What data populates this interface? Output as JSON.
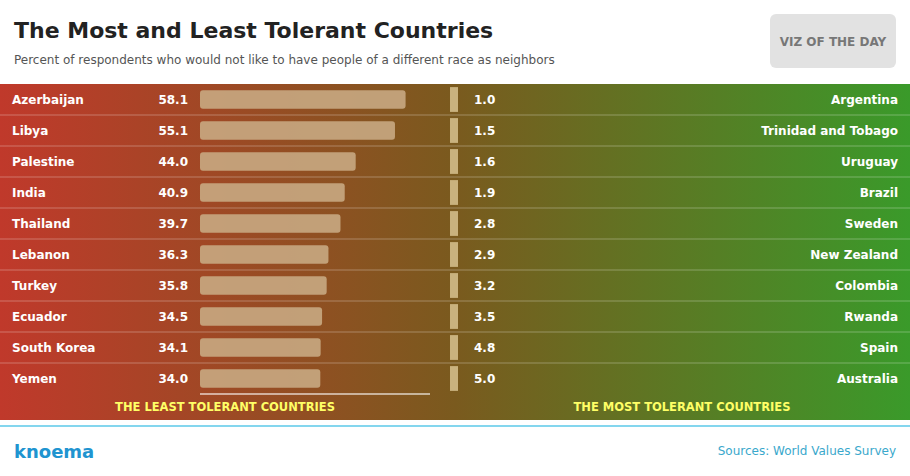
{
  "chart_data": [
    {
      "type": "bar",
      "orientation": "horizontal",
      "title": "The Most and Least Tolerant Countries",
      "subtitle": "Percent of respondents who would not like to have people of a different race as neighbors",
      "x_label": "THE LEAST TOLERANT COUNTRIES",
      "categories": [
        "Azerbaijan",
        "Libya",
        "Palestine",
        "India",
        "Thailand",
        "Lebanon",
        "Turkey",
        "Ecuador",
        "South Korea",
        "Yemen"
      ],
      "values": [
        58.1,
        55.1,
        44.0,
        40.9,
        39.7,
        36.3,
        35.8,
        34.5,
        34.1,
        34.0
      ],
      "value_labels": [
        "58.1",
        "55.1",
        "44.0",
        "40.9",
        "39.7",
        "36.3",
        "35.8",
        "34.5",
        "34.1",
        "34.0"
      ],
      "color": "#c8a882",
      "xlim": [
        0,
        65
      ],
      "data_labels": true,
      "tick_labels": "y",
      "annotations": [
        "VIZ OF THE DAY",
        "knoema",
        "Sources: World Values Survey"
      ]
    },
    {
      "type": "table",
      "x_label": "THE MOST TOLERANT COUNTRIES",
      "categories": [
        "Argentina",
        "Trinidad and Tobago",
        "Uruguay",
        "Brazil",
        "Sweden",
        "New Zealand",
        "Colombia",
        "Rwanda",
        "Spain",
        "Australia"
      ],
      "values": [
        1.0,
        1.5,
        1.6,
        1.9,
        2.8,
        2.9,
        3.2,
        3.5,
        4.8,
        5.0
      ],
      "value_labels": [
        "1.0",
        "1.5",
        "1.6",
        "1.9",
        "2.8",
        "2.9",
        "3.2",
        "3.5",
        "4.8",
        "5.0"
      ],
      "data_labels": true
    }
  ]
}
